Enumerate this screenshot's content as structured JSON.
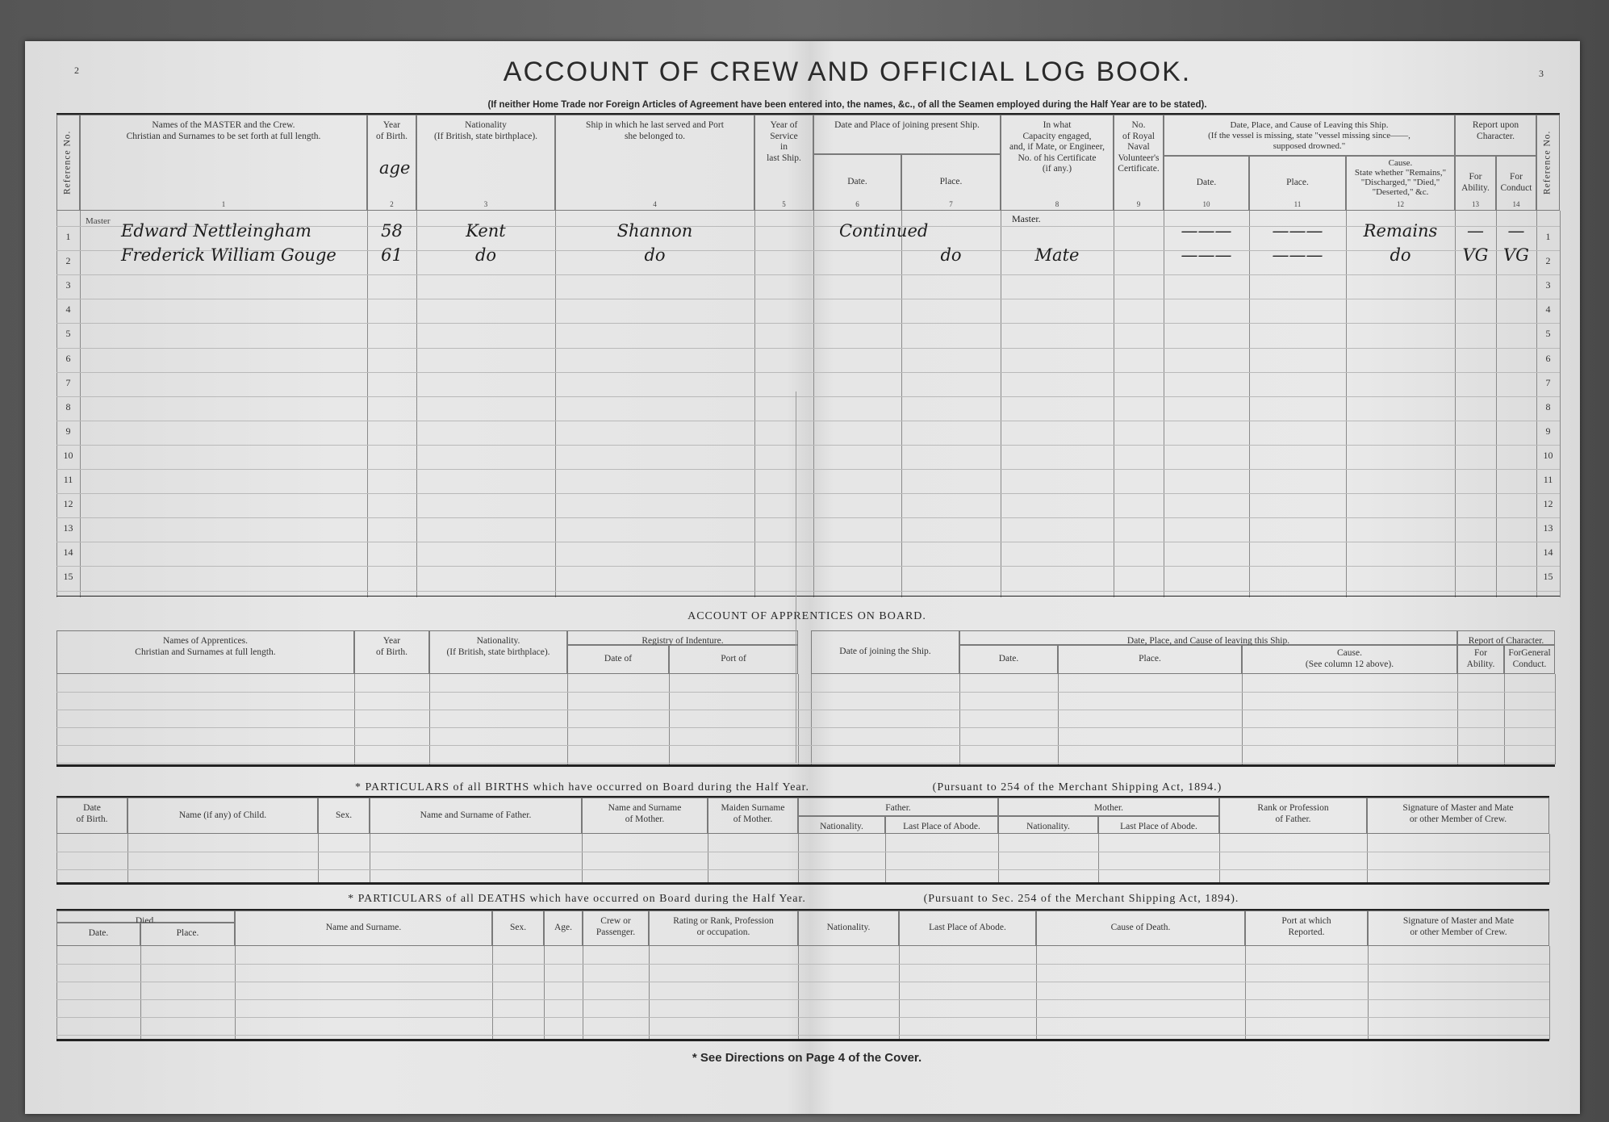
{
  "page_numbers": {
    "left": "2",
    "right": "3"
  },
  "title": "ACCOUNT OF CREW AND OFFICIAL LOG BOOK.",
  "subtitle": "(If neither Home Trade nor Foreign Articles of Agreement have been entered into, the names, &c., of all the Seamen employed during the Half Year are to be stated).",
  "crew": {
    "headers": {
      "ref": "Reference No.",
      "name": "Names of the MASTER and the Crew.\nChristian and Surnames to be set forth at full length.",
      "birth": "Year\nof Birth.",
      "birth_annotation": "age",
      "nationality": "Nationality\n(If British, state birthplace).",
      "ship": "Ship in which he last served and Port\nshe belonged to.",
      "service": "Year of Service\nin\nlast Ship.",
      "joining_group": "Date and Place of joining present Ship.",
      "join_date": "Date.",
      "join_place": "Place.",
      "capacity": "In what\nCapacity engaged,\nand, if Mate, or Engineer,\nNo. of his Certificate\n(if any.)",
      "rnv": "No.\nof Royal\nNaval\nVolunteer's\nCertificate.",
      "leaving_group": "Date, Place, and Cause of Leaving this Ship.\n(If the vessel is missing, state \"vessel missing since——,\nsupposed drowned.\"",
      "leave_date": "Date.",
      "leave_place": "Place.",
      "cause": "Cause.\nState whether \"Remains,\"\n\"Discharged,\" \"Died,\"\n\"Deserted,\" &c.",
      "character_group": "Report upon\nCharacter.",
      "ability": "For\nAbility.",
      "conduct": "For\nConduct",
      "ref_right": "Reference No."
    },
    "column_numbers": [
      "1",
      "2",
      "3",
      "4",
      "5",
      "6",
      "7",
      "8",
      "9",
      "10",
      "11",
      "12",
      "13",
      "14"
    ],
    "ref_numbers": [
      "1",
      "2",
      "3",
      "4",
      "5",
      "6",
      "7",
      "8",
      "9",
      "10",
      "11",
      "12",
      "13",
      "14",
      "15"
    ],
    "master_label": "Master",
    "entries": [
      {
        "name": "Edward Nettleingham",
        "age": "58",
        "nationality": "Kent",
        "ship": "Shannon",
        "join_date": "Continued",
        "join_place": "",
        "capacity": "Master.",
        "leave_date": "———",
        "leave_place": "———",
        "cause": "Remains",
        "ability": "—",
        "conduct": "—"
      },
      {
        "name": "Frederick William Gouge",
        "age": "61",
        "nationality": "do",
        "ship": "do",
        "join_date": "",
        "join_place": "do",
        "capacity": "Mate",
        "leave_date": "———",
        "leave_place": "———",
        "cause": "do",
        "ability": "VG",
        "conduct": "VG"
      }
    ]
  },
  "apprentices": {
    "title": "ACCOUNT OF APPRENTICES ON BOARD.",
    "headers": {
      "names": "Names of Apprentices.\nChristian and Surnames at full length.",
      "birth": "Year\nof Birth.",
      "nationality": "Nationality.\n(If British, state birthplace).",
      "registry_group": "Registry of Indenture.",
      "reg_date": "Date of",
      "reg_port": "Port of",
      "joining": "Date of joining the Ship.",
      "leaving_group": "Date, Place, and Cause of leaving this Ship.",
      "leave_date": "Date.",
      "leave_place": "Place.",
      "cause": "Cause.\n(See column 12 above).",
      "character_group": "Report of Character.",
      "ability": "For\nAbility.",
      "conduct": "ForGeneral\nConduct."
    }
  },
  "births": {
    "title": "* PARTICULARS of all BIRTHS which have occurred on Board during the Half Year.",
    "pursuant": "(Pursuant to 254 of the Merchant Shipping Act, 1894.)",
    "headers": {
      "date": "Date\nof Birth.",
      "child": "Name (if any) of Child.",
      "sex": "Sex.",
      "father_name": "Name and Surname of Father.",
      "mother_name": "Name and Surname\nof Mother.",
      "maiden": "Maiden Surname\nof Mother.",
      "father_group": "Father.",
      "father_nat": "Nationality.",
      "father_abode": "Last Place of Abode.",
      "mother_group": "Mother.",
      "mother_nat": "Nationality.",
      "mother_abode": "Last Place of Abode.",
      "rank": "Rank or Profession\nof Father.",
      "signature": "Signature of Master and Mate\nor other Member of Crew."
    }
  },
  "deaths": {
    "title": "* PARTICULARS of all DEATHS which have occurred on Board during the Half Year.",
    "pursuant": "(Pursuant to Sec. 254 of the Merchant Shipping Act, 1894).",
    "headers": {
      "died_group": "Died.",
      "date": "Date.",
      "place": "Place.",
      "name": "Name and Surname.",
      "sex": "Sex.",
      "age": "Age.",
      "crew": "Crew or\nPassenger.",
      "rating": "Rating or Rank, Profession\nor occupation.",
      "nationality": "Nationality.",
      "abode": "Last Place of Abode.",
      "cause": "Cause of Death.",
      "port": "Port at which\nReported.",
      "signature": "Signature of Master and Mate\nor other Member of Crew."
    }
  },
  "footer": "* See Directions on Page 4 of the Cover."
}
